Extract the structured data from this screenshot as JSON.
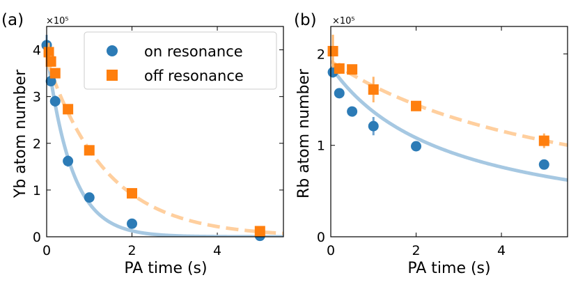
{
  "colors": {
    "on_marker": "#2c7bb6",
    "off_marker": "#ff7f0e",
    "on_fit": "#a6c8e2",
    "off_fit": "#ffcf9e"
  },
  "legend": {
    "on_label": "on resonance",
    "off_label": "off resonance"
  },
  "chart_data": [
    {
      "type": "scatter",
      "panel_label": "(a)",
      "multiplier": "×10⁵",
      "xlabel": "PA time (s)",
      "ylabel": "Yb atom number",
      "xlim": [
        0,
        5.55
      ],
      "ylim": [
        0,
        4.5
      ],
      "xticks": [
        0,
        2,
        4
      ],
      "xtick_labels": [
        "0",
        "2",
        "4"
      ],
      "yticks": [
        0,
        1,
        2,
        3,
        4
      ],
      "ytick_labels": [
        "0",
        "1",
        "2",
        "3",
        "4"
      ],
      "legend_position": "upper-right",
      "series": [
        {
          "name": "on resonance",
          "marker": "circle",
          "x": [
            0,
            0.1,
            0.2,
            0.5,
            1,
            2,
            5
          ],
          "y": [
            4.1,
            3.33,
            2.9,
            1.62,
            0.84,
            0.28,
            0.02
          ],
          "err": [
            0.22,
            0.08,
            0.12,
            0.12,
            0.04,
            0.04,
            0.02
          ],
          "fit": {
            "model": "A*exp(-t/tau)",
            "A": 4.0,
            "tau": 0.58
          }
        },
        {
          "name": "off resonance",
          "marker": "square",
          "x": [
            0.05,
            0.1,
            0.2,
            0.5,
            1,
            2,
            5
          ],
          "y": [
            3.95,
            3.75,
            3.5,
            2.73,
            1.85,
            0.93,
            0.12
          ],
          "err": [
            0.2,
            0.12,
            0.1,
            0.1,
            0.06,
            0.05,
            0.04
          ],
          "fit": {
            "model": "A*exp(-t/tau)",
            "A": 3.8,
            "tau": 1.4
          }
        }
      ]
    },
    {
      "type": "scatter",
      "panel_label": "(b)",
      "multiplier": "×10⁵",
      "xlabel": "PA time (s)",
      "ylabel": "Rb atom number",
      "xlim": [
        0,
        5.55
      ],
      "ylim": [
        0,
        2.3
      ],
      "xticks": [
        0,
        2,
        4
      ],
      "xtick_labels": [
        "0",
        "2",
        "4"
      ],
      "yticks": [
        0,
        1,
        2
      ],
      "ytick_labels": [
        "0",
        "1",
        "2"
      ],
      "series": [
        {
          "name": "on resonance",
          "marker": "circle",
          "x": [
            0.05,
            0.2,
            0.5,
            1,
            2,
            5
          ],
          "y": [
            1.8,
            1.57,
            1.37,
            1.21,
            0.99,
            0.79
          ],
          "err": [
            0.06,
            0.04,
            0.05,
            0.1,
            0.03,
            0.03
          ],
          "fit": {
            "model": "A/(1+B*t)",
            "A": 1.86,
            "B": 0.36
          }
        },
        {
          "name": "off resonance",
          "marker": "square",
          "x": [
            0.05,
            0.2,
            0.5,
            1,
            2,
            5
          ],
          "y": [
            2.03,
            1.84,
            1.83,
            1.61,
            1.43,
            1.05
          ],
          "err": [
            0.18,
            0.06,
            0.04,
            0.14,
            0.04,
            0.08
          ],
          "fit": {
            "model": "A/(1+B*t)",
            "A": 1.92,
            "B": 0.165
          }
        }
      ]
    }
  ]
}
